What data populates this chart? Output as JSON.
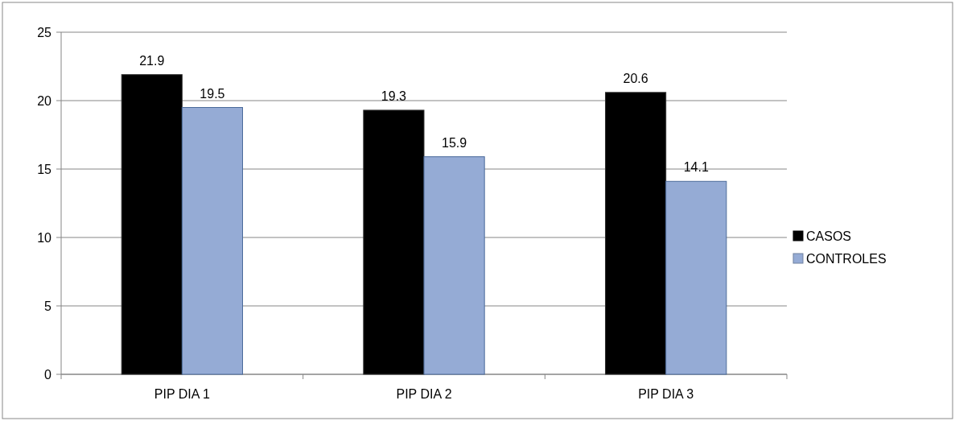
{
  "chart_data": {
    "type": "bar",
    "categories": [
      "PIP DIA 1",
      "PIP DIA 2",
      "PIP DIA 3"
    ],
    "series": [
      {
        "name": "CASOS",
        "color": "#000000",
        "values": [
          21.9,
          19.3,
          20.6
        ]
      },
      {
        "name": "CONTROLES",
        "color": "#95abd5",
        "values": [
          19.5,
          15.9,
          14.1
        ]
      }
    ],
    "ylim": [
      0,
      25
    ],
    "yticks": [
      0,
      5,
      10,
      15,
      20,
      25
    ],
    "grid": "y",
    "legend": "right",
    "data_labels": true
  }
}
